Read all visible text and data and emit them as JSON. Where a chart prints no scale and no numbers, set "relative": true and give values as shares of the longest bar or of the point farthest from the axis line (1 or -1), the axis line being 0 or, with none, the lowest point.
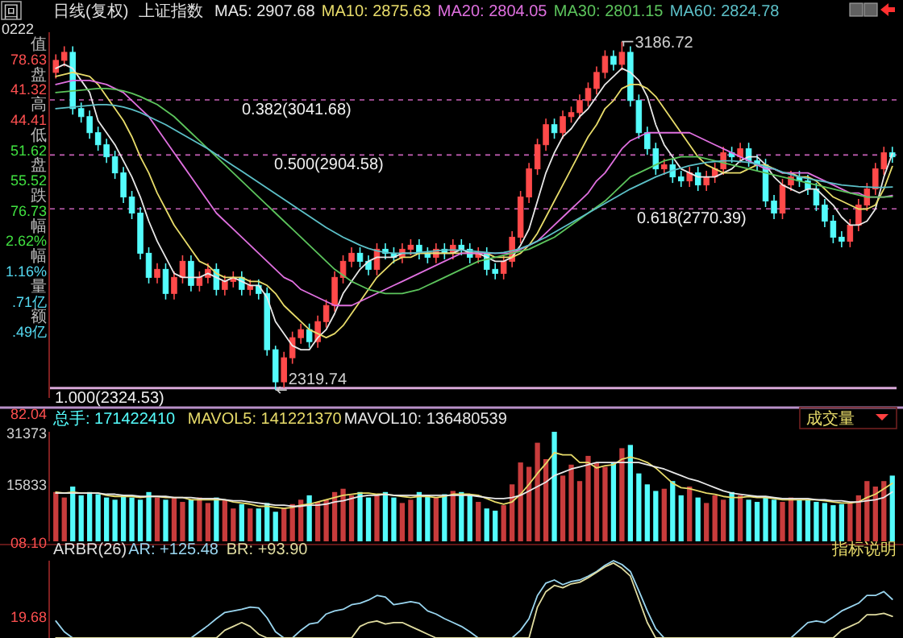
{
  "chart_data": [
    {
      "type": "candlestick",
      "title": "日线(复权)",
      "subtitle": "上证指数",
      "categories": [
        null,
        null,
        null,
        null,
        null,
        null,
        null,
        null,
        null,
        null,
        null,
        null,
        null,
        null,
        null,
        null,
        null,
        null,
        null,
        null,
        null,
        null,
        null,
        null,
        null,
        null,
        null,
        null,
        null,
        null,
        null,
        null,
        null,
        null,
        null,
        null,
        null,
        null,
        null,
        null,
        null,
        null,
        null,
        null,
        null,
        null,
        null,
        null,
        null,
        null,
        null,
        null,
        null,
        null,
        null,
        null,
        null,
        null,
        null,
        null,
        null,
        null,
        null,
        null,
        null,
        null,
        null,
        null,
        null,
        null,
        null,
        null,
        null,
        null,
        null,
        null,
        null,
        null,
        null,
        null,
        null,
        null,
        null,
        null,
        null,
        null,
        null,
        null,
        null,
        null,
        null,
        null,
        null,
        null,
        null,
        null,
        null,
        null,
        null,
        null
      ],
      "ylim": [
        2300,
        3210
      ],
      "ohlc": [
        [
          3110,
          3155,
          3095,
          3140
        ],
        [
          3140,
          3175,
          3125,
          3160
        ],
        [
          3160,
          3175,
          3005,
          3020
        ],
        [
          3020,
          3035,
          2985,
          3000
        ],
        [
          3000,
          3015,
          2945,
          2960
        ],
        [
          2960,
          2975,
          2915,
          2930
        ],
        [
          2930,
          2945,
          2885,
          2900
        ],
        [
          2900,
          2915,
          2845,
          2860
        ],
        [
          2860,
          2875,
          2785,
          2800
        ],
        [
          2800,
          2815,
          2745,
          2760
        ],
        [
          2760,
          2775,
          2645,
          2660
        ],
        [
          2660,
          2675,
          2585,
          2600
        ],
        [
          2600,
          2635,
          2585,
          2620
        ],
        [
          2620,
          2635,
          2545,
          2560
        ],
        [
          2560,
          2615,
          2545,
          2600
        ],
        [
          2600,
          2655,
          2585,
          2640
        ],
        [
          2640,
          2655,
          2565,
          2580
        ],
        [
          2580,
          2615,
          2565,
          2600
        ],
        [
          2600,
          2635,
          2585,
          2620
        ],
        [
          2620,
          2635,
          2555,
          2570
        ],
        [
          2570,
          2605,
          2555,
          2590
        ],
        [
          2590,
          2615,
          2575,
          2600
        ],
        [
          2600,
          2615,
          2555,
          2570
        ],
        [
          2570,
          2595,
          2555,
          2580
        ],
        [
          2580,
          2595,
          2545,
          2560
        ],
        [
          2560,
          2575,
          2405,
          2420
        ],
        [
          2420,
          2430,
          2319.74,
          2340
        ],
        [
          2340,
          2415,
          2325,
          2400
        ],
        [
          2400,
          2465,
          2385,
          2450
        ],
        [
          2450,
          2485,
          2435,
          2470
        ],
        [
          2470,
          2485,
          2425,
          2440
        ],
        [
          2440,
          2505,
          2425,
          2490
        ],
        [
          2490,
          2545,
          2475,
          2530
        ],
        [
          2530,
          2615,
          2515,
          2600
        ],
        [
          2600,
          2655,
          2585,
          2640
        ],
        [
          2640,
          2675,
          2625,
          2660
        ],
        [
          2660,
          2675,
          2625,
          2640
        ],
        [
          2640,
          2655,
          2605,
          2620
        ],
        [
          2620,
          2685,
          2605,
          2670
        ],
        [
          2670,
          2685,
          2645,
          2660
        ],
        [
          2660,
          2675,
          2635,
          2650
        ],
        [
          2650,
          2685,
          2635,
          2670
        ],
        [
          2670,
          2695,
          2655,
          2680
        ],
        [
          2680,
          2695,
          2645,
          2660
        ],
        [
          2660,
          2675,
          2635,
          2650
        ],
        [
          2650,
          2685,
          2635,
          2670
        ],
        [
          2670,
          2685,
          2645,
          2660
        ],
        [
          2660,
          2695,
          2645,
          2680
        ],
        [
          2680,
          2695,
          2655,
          2670
        ],
        [
          2670,
          2685,
          2635,
          2650
        ],
        [
          2650,
          2675,
          2635,
          2660
        ],
        [
          2660,
          2675,
          2605,
          2620
        ],
        [
          2620,
          2635,
          2595,
          2610
        ],
        [
          2610,
          2655,
          2595,
          2640
        ],
        [
          2640,
          2715,
          2625,
          2700
        ],
        [
          2700,
          2815,
          2685,
          2800
        ],
        [
          2800,
          2885,
          2785,
          2870
        ],
        [
          2870,
          2945,
          2855,
          2930
        ],
        [
          2930,
          2995,
          2915,
          2980
        ],
        [
          2980,
          2995,
          2945,
          2960
        ],
        [
          2960,
          3015,
          2945,
          3000
        ],
        [
          3000,
          3025,
          2985,
          3010
        ],
        [
          3010,
          3055,
          2995,
          3040
        ],
        [
          3040,
          3085,
          3025,
          3070
        ],
        [
          3070,
          3125,
          3055,
          3110
        ],
        [
          3110,
          3165,
          3095,
          3150
        ],
        [
          3150,
          3165,
          3115,
          3130
        ],
        [
          3130,
          3186.72,
          3115,
          3160
        ],
        [
          3160,
          3175,
          3025,
          3040
        ],
        [
          3040,
          3055,
          2945,
          2960
        ],
        [
          2960,
          2975,
          2905,
          2920
        ],
        [
          2920,
          2935,
          2855,
          2870
        ],
        [
          2870,
          2895,
          2855,
          2880
        ],
        [
          2880,
          2895,
          2835,
          2850
        ],
        [
          2850,
          2865,
          2825,
          2840
        ],
        [
          2840,
          2875,
          2825,
          2860
        ],
        [
          2860,
          2875,
          2815,
          2830
        ],
        [
          2830,
          2865,
          2815,
          2850
        ],
        [
          2850,
          2885,
          2835,
          2870
        ],
        [
          2870,
          2925,
          2855,
          2910
        ],
        [
          2910,
          2925,
          2885,
          2900
        ],
        [
          2900,
          2935,
          2885,
          2920
        ],
        [
          2920,
          2935,
          2875,
          2890
        ],
        [
          2890,
          2905,
          2865,
          2880
        ],
        [
          2880,
          2895,
          2775,
          2790
        ],
        [
          2790,
          2805,
          2745,
          2760
        ],
        [
          2760,
          2845,
          2745,
          2830
        ],
        [
          2830,
          2865,
          2815,
          2850
        ],
        [
          2850,
          2865,
          2825,
          2840
        ],
        [
          2840,
          2855,
          2805,
          2820
        ],
        [
          2820,
          2835,
          2765,
          2780
        ],
        [
          2780,
          2795,
          2725,
          2740
        ],
        [
          2740,
          2755,
          2685,
          2700
        ],
        [
          2700,
          2715,
          2675,
          2690
        ],
        [
          2690,
          2745,
          2675,
          2730
        ],
        [
          2730,
          2795,
          2715,
          2780
        ],
        [
          2780,
          2835,
          2765,
          2820
        ],
        [
          2820,
          2885,
          2805,
          2870
        ],
        [
          2870,
          2925,
          2855,
          2910
        ],
        [
          2910,
          2925,
          2885,
          2900
        ]
      ],
      "series": [
        {
          "type": "line",
          "name": "MA5: 2907.68",
          "color": "#e8e8e8",
          "values": [
            3120,
            3130,
            3120,
            3090,
            3060,
            2990,
            2960,
            2930,
            2890,
            2850,
            2800,
            2740,
            2690,
            2650,
            2610,
            2600,
            2600,
            2600,
            2610,
            2600,
            2590,
            2600,
            2590,
            2580,
            2580,
            2550,
            2490,
            2460,
            2430,
            2420,
            2420,
            2450,
            2470,
            2510,
            2560,
            2590,
            2620,
            2640,
            2650,
            2650,
            2650,
            2660,
            2660,
            2660,
            2660,
            2660,
            2660,
            2660,
            2670,
            2660,
            2660,
            2650,
            2640,
            2640,
            2650,
            2680,
            2720,
            2790,
            2860,
            2910,
            2950,
            2970,
            3000,
            3020,
            3050,
            3080,
            3100,
            3120,
            3110,
            3090,
            3050,
            2980,
            2930,
            2900,
            2870,
            2860,
            2850,
            2850,
            2850,
            2860,
            2870,
            2890,
            2900,
            2900,
            2880,
            2850,
            2830,
            2820,
            2810,
            2820,
            2820,
            2800,
            2780,
            2750,
            2730,
            2730,
            2740,
            2770,
            2850,
            2908
          ]
        },
        {
          "type": "line",
          "name": "MA10: 2875.63",
          "color": "#e8dc6a",
          "values": [
            3100,
            3105,
            3110,
            3105,
            3100,
            3080,
            3050,
            3020,
            2990,
            2950,
            2900,
            2860,
            2810,
            2770,
            2730,
            2700,
            2670,
            2640,
            2630,
            2610,
            2600,
            2600,
            2600,
            2590,
            2590,
            2580,
            2560,
            2530,
            2510,
            2490,
            2470,
            2460,
            2450,
            2460,
            2480,
            2510,
            2540,
            2570,
            2600,
            2620,
            2640,
            2650,
            2650,
            2660,
            2660,
            2660,
            2660,
            2660,
            2660,
            2660,
            2660,
            2660,
            2650,
            2650,
            2650,
            2660,
            2680,
            2710,
            2750,
            2790,
            2830,
            2870,
            2910,
            2950,
            2980,
            3020,
            3040,
            3070,
            3080,
            3080,
            3070,
            3050,
            3020,
            2990,
            2960,
            2930,
            2900,
            2880,
            2870,
            2860,
            2860,
            2860,
            2870,
            2880,
            2880,
            2870,
            2860,
            2860,
            2850,
            2850,
            2840,
            2820,
            2800,
            2790,
            2780,
            2770,
            2770,
            2780,
            2820,
            2876
          ]
        },
        {
          "type": "line",
          "name": "MA20: 2804.05",
          "color": "#e070e0",
          "values": [
            3080,
            3085,
            3090,
            3090,
            3090,
            3085,
            3080,
            3070,
            3060,
            3040,
            3020,
            3000,
            2970,
            2940,
            2910,
            2880,
            2850,
            2820,
            2790,
            2760,
            2740,
            2720,
            2700,
            2680,
            2660,
            2640,
            2620,
            2600,
            2590,
            2570,
            2560,
            2550,
            2540,
            2530,
            2530,
            2530,
            2540,
            2550,
            2560,
            2570,
            2580,
            2590,
            2600,
            2610,
            2620,
            2630,
            2640,
            2650,
            2660,
            2660,
            2660,
            2660,
            2660,
            2660,
            2660,
            2670,
            2680,
            2690,
            2710,
            2730,
            2750,
            2770,
            2790,
            2810,
            2840,
            2860,
            2890,
            2920,
            2940,
            2950,
            2960,
            2960,
            2960,
            2960,
            2960,
            2960,
            2950,
            2940,
            2930,
            2920,
            2910,
            2900,
            2890,
            2880,
            2870,
            2870,
            2860,
            2860,
            2860,
            2860,
            2850,
            2840,
            2830,
            2820,
            2810,
            2810,
            2800,
            2800,
            2800,
            2804
          ]
        },
        {
          "type": "line",
          "name": "MA30: 2801.15",
          "color": "#5cc45c",
          "values": [
            3060,
            3062,
            3064,
            3066,
            3068,
            3070,
            3070,
            3068,
            3064,
            3058,
            3050,
            3040,
            3030,
            3015,
            3000,
            2980,
            2960,
            2940,
            2920,
            2900,
            2880,
            2860,
            2840,
            2820,
            2800,
            2780,
            2760,
            2740,
            2720,
            2700,
            2680,
            2660,
            2640,
            2620,
            2605,
            2590,
            2580,
            2570,
            2565,
            2560,
            2560,
            2560,
            2565,
            2570,
            2580,
            2590,
            2600,
            2610,
            2620,
            2630,
            2640,
            2645,
            2650,
            2655,
            2660,
            2665,
            2670,
            2680,
            2690,
            2700,
            2715,
            2730,
            2745,
            2760,
            2775,
            2790,
            2810,
            2830,
            2850,
            2860,
            2870,
            2880,
            2890,
            2895,
            2900,
            2900,
            2900,
            2895,
            2890,
            2885,
            2880,
            2875,
            2870,
            2865,
            2860,
            2855,
            2850,
            2845,
            2840,
            2835,
            2830,
            2825,
            2820,
            2815,
            2810,
            2805,
            2800,
            2800,
            2800,
            2801
          ]
        },
        {
          "type": "line",
          "name": "MA60: 2824.78",
          "color": "#5cc0c8",
          "values": [
            3020,
            3022,
            3024,
            3026,
            3028,
            3030,
            3030,
            3028,
            3024,
            3018,
            3010,
            3000,
            2990,
            2980,
            2968,
            2956,
            2944,
            2932,
            2920,
            2906,
            2892,
            2878,
            2864,
            2850,
            2836,
            2822,
            2808,
            2794,
            2780,
            2766,
            2752,
            2738,
            2724,
            2712,
            2700,
            2690,
            2680,
            2672,
            2666,
            2662,
            2660,
            2660,
            2660,
            2662,
            2664,
            2666,
            2668,
            2668,
            2668,
            2666,
            2664,
            2662,
            2660,
            2662,
            2666,
            2672,
            2680,
            2690,
            2700,
            2712,
            2724,
            2736,
            2748,
            2760,
            2772,
            2784,
            2796,
            2808,
            2820,
            2830,
            2840,
            2850,
            2858,
            2866,
            2872,
            2878,
            2882,
            2886,
            2888,
            2890,
            2890,
            2888,
            2886,
            2882,
            2876,
            2870,
            2862,
            2856,
            2850,
            2846,
            2842,
            2838,
            2834,
            2830,
            2828,
            2826,
            2825,
            2824,
            2824,
            2825
          ]
        }
      ],
      "ref_lines": [
        {
          "axis": "y",
          "value": 3041.68,
          "label": "0.382(3041.68)",
          "color": "#c860b8",
          "line_style": "dashed"
        },
        {
          "axis": "y",
          "value": 2904.58,
          "label": "0.500(2904.58)",
          "color": "#c860b8",
          "line_style": "dashed"
        },
        {
          "axis": "y",
          "value": 2770.39,
          "label": "0.618(2770.39)",
          "color": "#c860b8",
          "line_style": "dashed"
        },
        {
          "axis": "y",
          "value": 2324.53,
          "label": "1.000(2324.53)",
          "color": "#d8a8d8",
          "line_style": "solid"
        }
      ],
      "annotations": [
        "0222",
        "值",
        "78.63",
        "盘",
        "41.32",
        "高",
        "44.41",
        "低",
        "51.62",
        "盘",
        "55.52",
        "跌",
        "76.73",
        "幅",
        "2.62%",
        "幅",
        "1.16%",
        "量",
        ".71亿",
        "额",
        ".49亿",
        "82.04",
        "3186.72",
        "2319.74",
        "回"
      ]
    },
    {
      "type": "bar",
      "relative": true,
      "categories": [
        null,
        null,
        null,
        null,
        null,
        null,
        null,
        null,
        null,
        null,
        null,
        null,
        null,
        null,
        null,
        null,
        null,
        null,
        null,
        null,
        null,
        null,
        null,
        null,
        null,
        null,
        null,
        null,
        null,
        null,
        null,
        null,
        null,
        null,
        null,
        null,
        null,
        null,
        null,
        null,
        null,
        null,
        null,
        null,
        null,
        null,
        null,
        null,
        null,
        null,
        null,
        null,
        null,
        null,
        null,
        null,
        null,
        null,
        null,
        null,
        null,
        null,
        null,
        null,
        null,
        null,
        null,
        null,
        null,
        null,
        null,
        null,
        null,
        null,
        null,
        null,
        null,
        null,
        null,
        null,
        null,
        null,
        null,
        null,
        null,
        null,
        null,
        null,
        null,
        null,
        null,
        null,
        null,
        null,
        null,
        null,
        null,
        null,
        null,
        null
      ],
      "series": [
        {
          "type": "bar",
          "name": "总手: 171422410",
          "color": "#54fcfc",
          "values": [
            0.45,
            0.4,
            0.5,
            0.42,
            0.45,
            0.43,
            0.4,
            0.38,
            0.42,
            0.4,
            0.38,
            0.45,
            0.4,
            0.38,
            0.4,
            0.36,
            0.38,
            0.4,
            0.35,
            0.4,
            0.38,
            0.3,
            0.34,
            0.3,
            0.3,
            0.35,
            0.27,
            0.3,
            0.34,
            0.38,
            0.42,
            0.36,
            0.38,
            0.45,
            0.48,
            0.42,
            0.45,
            0.4,
            0.42,
            0.45,
            0.4,
            0.35,
            0.38,
            0.45,
            0.42,
            0.4,
            0.43,
            0.46,
            0.45,
            0.42,
            0.36,
            0.3,
            0.28,
            0.33,
            0.52,
            0.72,
            0.68,
            0.9,
            0.75,
            1.0,
            0.6,
            0.7,
            0.55,
            0.78,
            0.72,
            0.68,
            0.72,
            0.85,
            0.88,
            0.62,
            0.52,
            0.46,
            0.48,
            0.55,
            0.42,
            0.5,
            0.4,
            0.35,
            0.42,
            0.38,
            0.45,
            0.42,
            0.38,
            0.36,
            0.4,
            0.38,
            0.36,
            0.4,
            0.38,
            0.38,
            0.36,
            0.35,
            0.33,
            0.34,
            0.35,
            0.42,
            0.55,
            0.5,
            0.55,
            0.6
          ],
          "colors": [
            "#c83c3c",
            "#c83c3c",
            "#54fcfc",
            "#54fcfc",
            "#54fcfc",
            "#54fcfc",
            "#54fcfc",
            "#54fcfc",
            "#54fcfc",
            "#54fcfc",
            "#54fcfc",
            "#54fcfc",
            "#c83c3c",
            "#54fcfc",
            "#c83c3c",
            "#c83c3c",
            "#54fcfc",
            "#c83c3c",
            "#c83c3c",
            "#54fcfc",
            "#c83c3c",
            "#c83c3c",
            "#54fcfc",
            "#c83c3c",
            "#54fcfc",
            "#54fcfc",
            "#54fcfc",
            "#c83c3c",
            "#c83c3c",
            "#c83c3c",
            "#54fcfc",
            "#c83c3c",
            "#c83c3c",
            "#c83c3c",
            "#c83c3c",
            "#c83c3c",
            "#54fcfc",
            "#54fcfc",
            "#c83c3c",
            "#54fcfc",
            "#54fcfc",
            "#c83c3c",
            "#c83c3c",
            "#54fcfc",
            "#54fcfc",
            "#c83c3c",
            "#54fcfc",
            "#c83c3c",
            "#54fcfc",
            "#54fcfc",
            "#c83c3c",
            "#54fcfc",
            "#54fcfc",
            "#c83c3c",
            "#c83c3c",
            "#c83c3c",
            "#c83c3c",
            "#c83c3c",
            "#c83c3c",
            "#54fcfc",
            "#c83c3c",
            "#c83c3c",
            "#c83c3c",
            "#c83c3c",
            "#c83c3c",
            "#c83c3c",
            "#54fcfc",
            "#c83c3c",
            "#54fcfc",
            "#54fcfc",
            "#54fcfc",
            "#54fcfc",
            "#c83c3c",
            "#54fcfc",
            "#54fcfc",
            "#c83c3c",
            "#54fcfc",
            "#c83c3c",
            "#c83c3c",
            "#c83c3c",
            "#54fcfc",
            "#c83c3c",
            "#54fcfc",
            "#54fcfc",
            "#54fcfc",
            "#54fcfc",
            "#c83c3c",
            "#c83c3c",
            "#54fcfc",
            "#54fcfc",
            "#54fcfc",
            "#54fcfc",
            "#54fcfc",
            "#54fcfc",
            "#c83c3c",
            "#c83c3c",
            "#c83c3c",
            "#c83c3c",
            "#c83c3c",
            "#54fcfc"
          ]
        },
        {
          "type": "line",
          "name": "MAVOL5: 141221370",
          "color": "#e8dc6a",
          "values": [
            0.45,
            0.44,
            0.45,
            0.44,
            0.44,
            0.44,
            0.42,
            0.41,
            0.41,
            0.41,
            0.4,
            0.41,
            0.41,
            0.4,
            0.4,
            0.4,
            0.38,
            0.38,
            0.38,
            0.38,
            0.38,
            0.36,
            0.35,
            0.34,
            0.32,
            0.32,
            0.31,
            0.3,
            0.31,
            0.33,
            0.34,
            0.36,
            0.38,
            0.4,
            0.42,
            0.43,
            0.44,
            0.44,
            0.43,
            0.43,
            0.42,
            0.41,
            0.4,
            0.41,
            0.41,
            0.4,
            0.41,
            0.43,
            0.43,
            0.43,
            0.42,
            0.39,
            0.36,
            0.34,
            0.36,
            0.43,
            0.52,
            0.62,
            0.71,
            0.81,
            0.79,
            0.79,
            0.72,
            0.72,
            0.67,
            0.69,
            0.7,
            0.75,
            0.77,
            0.75,
            0.72,
            0.67,
            0.6,
            0.53,
            0.49,
            0.48,
            0.46,
            0.44,
            0.43,
            0.41,
            0.4,
            0.4,
            0.41,
            0.4,
            0.4,
            0.39,
            0.38,
            0.38,
            0.38,
            0.38,
            0.38,
            0.37,
            0.36,
            0.35,
            0.35,
            0.36,
            0.4,
            0.43,
            0.48,
            0.53
          ]
        },
        {
          "type": "line",
          "name": "MAVOL10: 136480539",
          "color": "#e8e8e8",
          "values": [
            0.44,
            0.44,
            0.44,
            0.44,
            0.44,
            0.44,
            0.43,
            0.43,
            0.42,
            0.42,
            0.41,
            0.41,
            0.41,
            0.41,
            0.4,
            0.4,
            0.4,
            0.39,
            0.39,
            0.39,
            0.38,
            0.37,
            0.37,
            0.36,
            0.35,
            0.34,
            0.33,
            0.33,
            0.32,
            0.32,
            0.33,
            0.33,
            0.34,
            0.36,
            0.37,
            0.39,
            0.41,
            0.42,
            0.42,
            0.43,
            0.42,
            0.42,
            0.42,
            0.42,
            0.42,
            0.42,
            0.42,
            0.42,
            0.42,
            0.42,
            0.41,
            0.4,
            0.39,
            0.39,
            0.4,
            0.42,
            0.46,
            0.5,
            0.54,
            0.6,
            0.63,
            0.66,
            0.68,
            0.7,
            0.72,
            0.72,
            0.72,
            0.72,
            0.72,
            0.72,
            0.7,
            0.68,
            0.66,
            0.63,
            0.6,
            0.57,
            0.55,
            0.52,
            0.49,
            0.46,
            0.44,
            0.43,
            0.42,
            0.41,
            0.41,
            0.4,
            0.39,
            0.39,
            0.39,
            0.39,
            0.38,
            0.38,
            0.37,
            0.37,
            0.36,
            0.36,
            0.37,
            0.38,
            0.4,
            0.45
          ]
        }
      ],
      "annotations": [
        "31373",
        "15833",
        "成交量"
      ]
    },
    {
      "type": "line",
      "relative": true,
      "title": "ARBR(26)",
      "categories": [
        null,
        null,
        null,
        null,
        null,
        null,
        null,
        null,
        null,
        null,
        null,
        null,
        null,
        null,
        null,
        null,
        null,
        null,
        null,
        null,
        null,
        null,
        null,
        null,
        null,
        null,
        null,
        null,
        null,
        null,
        null,
        null,
        null,
        null,
        null,
        null,
        null,
        null,
        null,
        null,
        null,
        null,
        null,
        null,
        null,
        null,
        null,
        null,
        null,
        null,
        null,
        null,
        null,
        null,
        null,
        null,
        null,
        null,
        null,
        null,
        null,
        null,
        null,
        null,
        null,
        null,
        null,
        null,
        null,
        null,
        null,
        null,
        null,
        null,
        null,
        null,
        null,
        null,
        null,
        null,
        null,
        null,
        null,
        null,
        null,
        null,
        null,
        null,
        null,
        null,
        null,
        null,
        null,
        null,
        null,
        null,
        null,
        null,
        null,
        null
      ],
      "series": [
        {
          "name": "AR: +125.48",
          "color": "#9ad6f0",
          "values": [
            0.22,
            0.08,
            0,
            0,
            0,
            0,
            0,
            0,
            0,
            0,
            0,
            0,
            0,
            0,
            0,
            0,
            0,
            0.08,
            0.16,
            0.25,
            0.33,
            0.35,
            0.37,
            0.4,
            0.39,
            0.26,
            0.08,
            0,
            0,
            0.1,
            0.18,
            0.2,
            0.31,
            0.35,
            0.37,
            0.43,
            0.45,
            0.49,
            0.55,
            0.53,
            0.43,
            0.45,
            0.47,
            0.45,
            0.35,
            0.31,
            0.25,
            0.2,
            0.15,
            0.08,
            0,
            0,
            0,
            0,
            0,
            0.1,
            0.25,
            0.55,
            0.71,
            0.75,
            0.69,
            0.73,
            0.75,
            0.8,
            0.86,
            0.94,
            1,
            0.95,
            0.86,
            0.61,
            0.35,
            0.12,
            0,
            0,
            0,
            0,
            0,
            0,
            0,
            0,
            0,
            0,
            0,
            0,
            0,
            0,
            0,
            0,
            0.1,
            0.2,
            0.22,
            0.2,
            0.27,
            0.35,
            0.4,
            0.45,
            0.55,
            0.55,
            0.6,
            0.5
          ]
        },
        {
          "name": "BR: +93.90",
          "color": "#e0dca0",
          "values": [
            0,
            0,
            0,
            0,
            0,
            0,
            0,
            0,
            0,
            0,
            0,
            0,
            0,
            0,
            0,
            0,
            0,
            0,
            0,
            0,
            0.1,
            0.15,
            0.2,
            0.15,
            0.05,
            0,
            0,
            0,
            0,
            0,
            0,
            0,
            0,
            0,
            0,
            0,
            0.15,
            0.2,
            0.22,
            0.18,
            0.2,
            0.2,
            0.15,
            0.1,
            0.05,
            0,
            0,
            0,
            0,
            0,
            0,
            0,
            0,
            0,
            0,
            0,
            0,
            0.4,
            0.6,
            0.68,
            0.65,
            0.7,
            0.72,
            0.78,
            0.85,
            0.92,
            0.97,
            0.9,
            0.8,
            0.5,
            0.2,
            0,
            0,
            0,
            0,
            0,
            0,
            0,
            0,
            0,
            0,
            0,
            0,
            0,
            0,
            0,
            0,
            0,
            0,
            0,
            0,
            0,
            0,
            0.1,
            0.15,
            0.2,
            0.3,
            0.3,
            0.32,
            0.28
          ]
        }
      ],
      "annotations": [
        "08.10",
        "19.68",
        "指标说明"
      ]
    }
  ]
}
